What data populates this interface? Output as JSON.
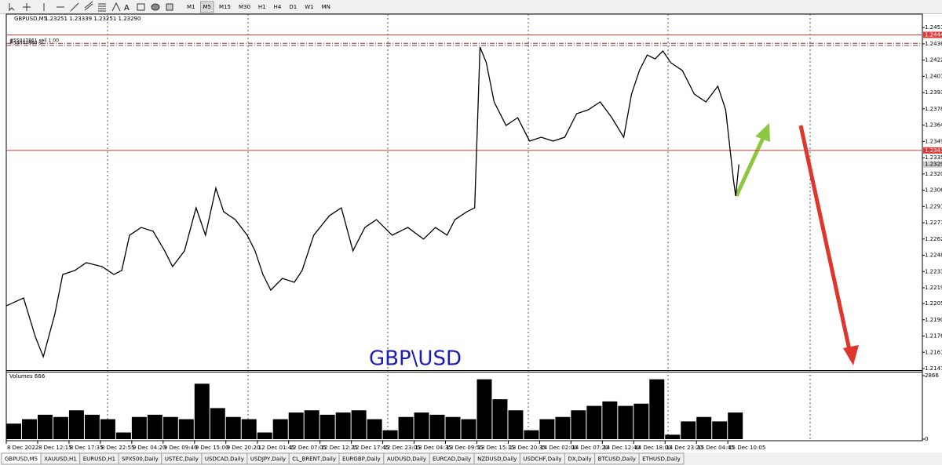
{
  "toolbar": {
    "timeframes": [
      "M1",
      "M5",
      "M15",
      "M30",
      "H1",
      "H4",
      "D1",
      "W1",
      "MN"
    ],
    "active": 1
  },
  "chart_data": {
    "type": "line",
    "title": "GBPUSD,M5",
    "subtitle": "1.23251 1.23339 1.23251 1.23290",
    "color": "#000000",
    "x": [
      0,
      0.55,
      0.93,
      1.18,
      1.55,
      1.8,
      2.18,
      2.55,
      3.05,
      3.43,
      3.68,
      3.93,
      4.3,
      4.68,
      5.05,
      5.3,
      5.68,
      6.05,
      6.35,
      6.68,
      6.93,
      7.3,
      7.68,
      7.93,
      8.18,
      8.43,
      8.8,
      9.18,
      9.43,
      9.8,
      10.3,
      10.68,
      11.05,
      11.43,
      11.8,
      12.3,
      12.8,
      13.3,
      13.68,
      14.05,
      14.3,
      14.68,
      14.93,
      15.1,
      15.3,
      15.55,
      15.93,
      16.3,
      16.68,
      17.05,
      17.43,
      17.8,
      18.18,
      18.55,
      18.93,
      19.3,
      19.68,
      19.93,
      20.18,
      20.43,
      20.68,
      20.93,
      21.18,
      21.55,
      21.93,
      22.3,
      22.68,
      22.93,
      23.18,
      23.25,
      23.35
    ],
    "values": [
      1.22029,
      1.22099,
      1.2175,
      1.21575,
      1.21959,
      1.22309,
      1.22344,
      1.22414,
      1.22379,
      1.22309,
      1.22344,
      1.22659,
      1.22728,
      1.22694,
      1.22519,
      1.22379,
      1.22519,
      1.22903,
      1.22659,
      1.23078,
      1.22868,
      1.22798,
      1.22659,
      1.22519,
      1.22309,
      1.22169,
      1.22274,
      1.22239,
      1.22344,
      1.22659,
      1.22833,
      1.22903,
      1.22519,
      1.22728,
      1.22798,
      1.22659,
      1.22728,
      1.22624,
      1.22728,
      1.22659,
      1.22798,
      1.22868,
      1.22903,
      1.24336,
      1.24197,
      1.23847,
      1.23637,
      1.23707,
      1.23498,
      1.23532,
      1.23498,
      1.23532,
      1.23742,
      1.23777,
      1.23847,
      1.23707,
      1.23532,
      1.23917,
      1.24127,
      1.24266,
      1.24231,
      1.24301,
      1.24197,
      1.24127,
      1.23917,
      1.23847,
      1.23987,
      1.23777,
      1.23148,
      1.23008,
      1.2329
    ],
    "xlim": [
      0,
      29.2
    ],
    "xticks": [
      {
        "value": 0,
        "label": "8 Dec 2022"
      },
      {
        "value": 1,
        "label": "8 Dec 12:15"
      },
      {
        "value": 2,
        "label": "8 Dec 17:35"
      },
      {
        "value": 3,
        "label": "8 Dec 22:55"
      },
      {
        "value": 4,
        "label": "9 Dec 04:20"
      },
      {
        "value": 5,
        "label": "9 Dec 09:40"
      },
      {
        "value": 6,
        "label": "9 Dec 15:00"
      },
      {
        "value": 7,
        "label": "9 Dec 20:20"
      },
      {
        "value": 8,
        "label": "12 Dec 01:45"
      },
      {
        "value": 9,
        "label": "12 Dec 07:05"
      },
      {
        "value": 10,
        "label": "12 Dec 12:25"
      },
      {
        "value": 11,
        "label": "12 Dec 17:45"
      },
      {
        "value": 12,
        "label": "12 Dec 23:05"
      },
      {
        "value": 13,
        "label": "13 Dec 04:35"
      },
      {
        "value": 14,
        "label": "13 Dec 09:55"
      },
      {
        "value": 15,
        "label": "13 Dec 15:15"
      },
      {
        "value": 16,
        "label": "13 Dec 20:35"
      },
      {
        "value": 17,
        "label": "14 Dec 02:00"
      },
      {
        "value": 18,
        "label": "14 Dec 07:20"
      },
      {
        "value": 19,
        "label": "14 Dec 12:40"
      },
      {
        "value": 20,
        "label": "14 Dec 18:00"
      },
      {
        "value": 21,
        "label": "14 Dec 23:20"
      },
      {
        "value": 22,
        "label": "15 Dec 04:45"
      },
      {
        "value": 23,
        "label": "15 Dec 10:05"
      }
    ],
    "ylim": [
      1.21456,
      1.2463
    ],
    "yticks": [
      {
        "value": 1.2451,
        "label": "1.24510"
      },
      {
        "value": 1.24365,
        "label": "1.24365"
      },
      {
        "value": 1.2422,
        "label": "1.24220"
      },
      {
        "value": 1.24075,
        "label": "1.24075"
      },
      {
        "value": 1.2393,
        "label": "1.23930"
      },
      {
        "value": 1.23785,
        "label": "1.23785"
      },
      {
        "value": 1.2364,
        "label": "1.23640"
      },
      {
        "value": 1.23495,
        "label": "1.23495"
      },
      {
        "value": 1.2335,
        "label": "1.23350"
      },
      {
        "value": 1.23205,
        "label": "1.23205"
      },
      {
        "value": 1.2306,
        "label": "1.23060"
      },
      {
        "value": 1.22915,
        "label": "1.22915"
      },
      {
        "value": 1.2277,
        "label": "1.22770"
      },
      {
        "value": 1.22625,
        "label": "1.22625"
      },
      {
        "value": 1.2248,
        "label": "1.22480"
      },
      {
        "value": 1.22335,
        "label": "1.22335"
      },
      {
        "value": 1.2219,
        "label": "1.22190"
      },
      {
        "value": 1.2205,
        "label": "1.22050"
      },
      {
        "value": 1.21905,
        "label": "1.21905"
      },
      {
        "value": 1.2176,
        "label": "1.21760"
      },
      {
        "value": 1.21615,
        "label": "1.21615"
      },
      {
        "value": 1.2147,
        "label": "1.21470"
      }
    ],
    "grid": false,
    "levels": [
      {
        "value": 1.24445,
        "label": "1.24445",
        "color": "#e03a3a",
        "line": true
      },
      {
        "value": 1.23415,
        "label": "1.23415",
        "color": "#e03a3a",
        "line": true
      },
      {
        "value": 1.2329,
        "label": "1.23290",
        "color": "#c8c8c8",
        "line": false
      }
    ],
    "orders": [
      {
        "value": 1.2437,
        "label": "#55047861 sell 1.00",
        "color": "#8b3a3a"
      },
      {
        "value": 1.2435,
        "label": "#55047860 sl",
        "color": "#8b3a3a"
      }
    ],
    "annotation": "GBP\\USD",
    "volume": {
      "type": "bar",
      "label": "Volumes 666",
      "color": "#000000",
      "x": [
        0,
        0.5,
        1,
        1.5,
        2,
        2.5,
        3,
        3.5,
        4,
        4.5,
        5,
        5.5,
        6,
        6.5,
        7,
        7.5,
        8,
        8.5,
        9,
        9.5,
        10,
        10.5,
        11,
        11.5,
        12,
        12.5,
        13,
        13.5,
        14,
        14.5,
        15,
        15.5,
        16,
        16.5,
        17,
        17.5,
        18,
        18.5,
        19,
        19.5,
        20,
        20.5,
        21,
        21.5,
        22,
        22.5,
        23
      ],
      "values": [
        700,
        900,
        1100,
        1000,
        1300,
        1100,
        900,
        300,
        1000,
        1100,
        1000,
        900,
        2500,
        1400,
        1000,
        900,
        300,
        900,
        1200,
        1300,
        1100,
        1200,
        1300,
        900,
        400,
        1000,
        1200,
        1100,
        1000,
        900,
        2700,
        1800,
        1300,
        400,
        900,
        1000,
        1300,
        1500,
        1700,
        1500,
        1600,
        2700,
        200,
        800,
        1000,
        800,
        1200
      ],
      "ylim": [
        0,
        2866
      ],
      "yticks": [
        2866,
        0
      ]
    }
  },
  "tabs": [
    "GBPUSD,M5",
    "XAUUSD,H1",
    "EURUSD,H1",
    "SPX500,Daily",
    "USTEC,Daily",
    "USDCAD,Daily",
    "USDJPY,Daily",
    "CL_BRENT,Daily",
    "EURGBP,Daily",
    "AUDUSD,Daily",
    "EURCAD,Daily",
    "NZDUSD,Daily",
    "USDCHF,Daily",
    "DX,Daily",
    "BTCUSD,Daily",
    "ETHUSD,Daily"
  ],
  "active_tab": 0
}
